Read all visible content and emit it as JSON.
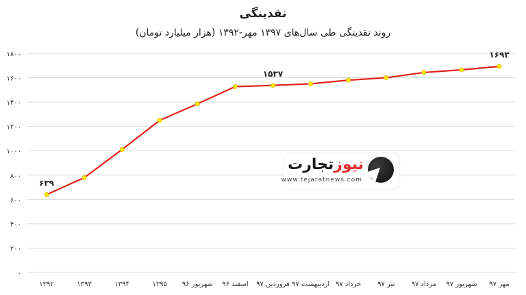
{
  "title": "نقدینگی",
  "subtitle": "روند نقدینگی طی سال‌های ۱۳۹۷ مهر-۱۳۹۲ (هزار میلیارد تومان)",
  "watermark": {
    "brand_main": "تجارت",
    "brand_accent": "نیوز",
    "url": "www.tejaratnews.com"
  },
  "colors": {
    "line": "#e0221b",
    "marker": "#ffe600",
    "grid": "#d9d9d9"
  },
  "chart_data": {
    "type": "line",
    "title": "نقدینگی",
    "subtitle": "روند نقدینگی طی سال‌های ۱۳۹۷ مهر-۱۳۹۲ (هزار میلیارد تومان)",
    "categories": [
      "۱۳۹۲",
      "۱۳۹۳",
      "۱۳۹۴",
      "۱۳۹۵",
      "شهریور ۹۶",
      "اسفند ۹۶",
      "فروردین ۹۷",
      "اردیبهشت ۹۷",
      "خرداد ۹۷",
      "تیر ۹۷",
      "مرداد ۹۷",
      "شهریور ۹۷",
      "مهر ۹۷"
    ],
    "values": [
      639,
      779,
      1010,
      1250,
      1385,
      1527,
      1537,
      1550,
      1580,
      1600,
      1643,
      1665,
      1693
    ],
    "ylim": [
      0,
      1800
    ],
    "yticks": [
      0,
      200,
      400,
      600,
      800,
      1000,
      1200,
      1400,
      1600,
      1800
    ],
    "ytick_labels": [
      "۰",
      "۲۰۰",
      "۴۰۰",
      "۶۰۰",
      "۸۰۰",
      "۱۰۰۰",
      "۱۲۰۰",
      "۱۴۰۰",
      "۱۶۰۰",
      "۱۸۰۰"
    ],
    "data_labels": [
      {
        "index": 0,
        "text": "۶۳۹"
      },
      {
        "index": 6,
        "text": "۱۵۳۷"
      },
      {
        "index": 12,
        "text": "۱۶۹۳"
      }
    ],
    "grid": true,
    "legend": "none"
  }
}
